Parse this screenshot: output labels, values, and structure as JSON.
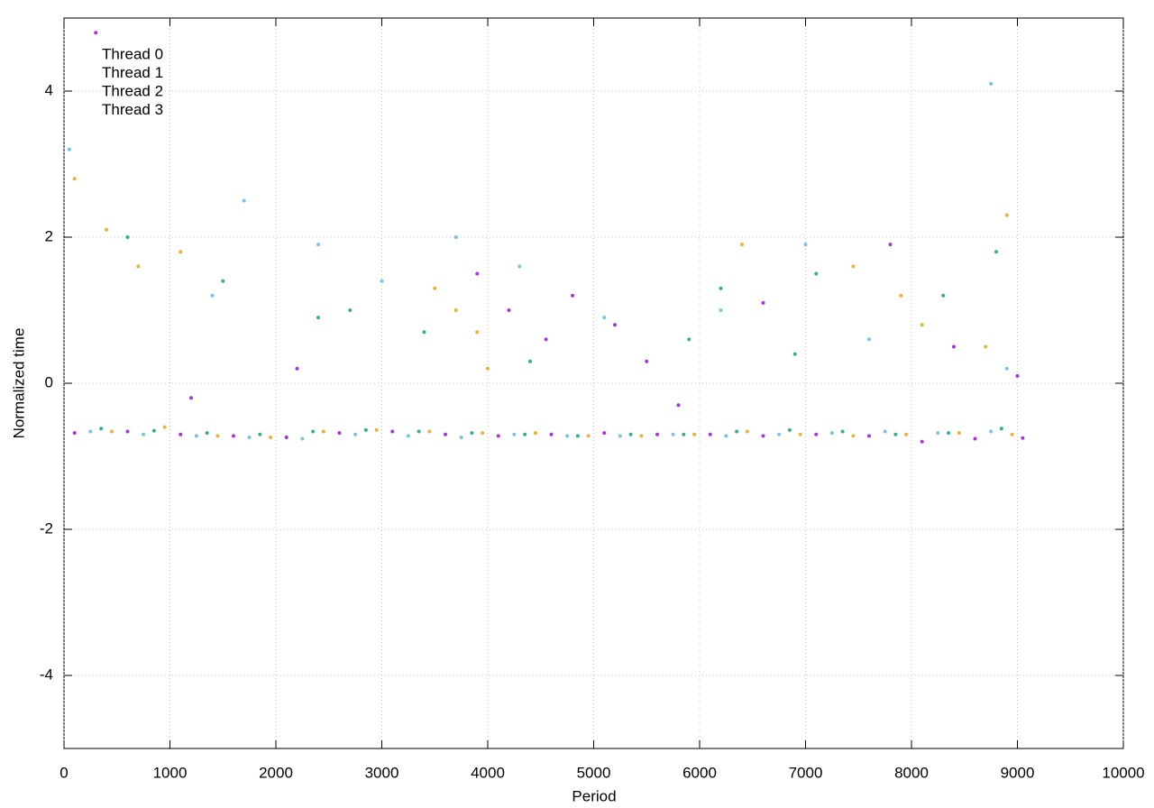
{
  "chart_data": {
    "type": "scatter",
    "x_label": "Period",
    "y_label": "Normalized time",
    "xlim": [
      0,
      10000
    ],
    "ylim": [
      -5,
      5
    ],
    "xticks": [
      0,
      1000,
      2000,
      3000,
      4000,
      5000,
      6000,
      7000,
      8000,
      9000,
      10000
    ],
    "yticks": [
      -4,
      -2,
      0,
      2,
      4
    ],
    "grid": true,
    "legend": "top-left",
    "series": [
      {
        "name": "Thread 0",
        "color": "#9400d3",
        "x": [
          100,
          600,
          1100,
          1600,
          2100,
          2600,
          3100,
          3600,
          4100,
          4600,
          5100,
          5600,
          6100,
          6600,
          7100,
          7600,
          8100,
          8600,
          9050,
          4200,
          4550,
          4800,
          5200,
          5500,
          3900,
          2200,
          6600,
          8400,
          1200,
          7800,
          300,
          9000,
          5800
        ],
        "values": [
          -0.68,
          -0.66,
          -0.7,
          -0.72,
          -0.74,
          -0.68,
          -0.66,
          -0.7,
          -0.72,
          -0.7,
          -0.68,
          -0.7,
          -0.7,
          -0.72,
          -0.7,
          -0.72,
          -0.8,
          -0.76,
          -0.75,
          1.0,
          0.6,
          1.2,
          0.8,
          0.3,
          1.5,
          0.2,
          1.1,
          0.5,
          -0.2,
          1.9,
          4.8,
          0.1,
          -0.3
        ]
      },
      {
        "name": "Thread 1",
        "color": "#009e73",
        "x": [
          350,
          850,
          1350,
          1850,
          2350,
          2850,
          3350,
          3850,
          4350,
          4850,
          5350,
          5850,
          6350,
          6850,
          7350,
          7850,
          8350,
          8850,
          6200,
          7100,
          2700,
          8800,
          1500,
          3400,
          600,
          6900,
          8300,
          2400,
          5900,
          4400
        ],
        "values": [
          -0.62,
          -0.65,
          -0.68,
          -0.7,
          -0.66,
          -0.64,
          -0.66,
          -0.68,
          -0.7,
          -0.72,
          -0.7,
          -0.7,
          -0.66,
          -0.64,
          -0.66,
          -0.7,
          -0.68,
          -0.62,
          1.3,
          1.5,
          1.0,
          1.8,
          1.4,
          0.7,
          2.0,
          0.4,
          1.2,
          0.9,
          0.6,
          0.3
        ]
      },
      {
        "name": "Thread 2",
        "color": "#56b4e9",
        "x": [
          250,
          750,
          1250,
          1750,
          2250,
          2750,
          3250,
          3750,
          4250,
          4750,
          5250,
          5750,
          6250,
          6750,
          7250,
          7750,
          8250,
          8750,
          8750,
          3000,
          2400,
          1400,
          4300,
          7000,
          6200,
          8900,
          50,
          3700,
          1700,
          5100,
          7600
        ],
        "values": [
          -0.66,
          -0.7,
          -0.72,
          -0.74,
          -0.76,
          -0.7,
          -0.72,
          -0.74,
          -0.7,
          -0.72,
          -0.72,
          -0.7,
          -0.72,
          -0.7,
          -0.68,
          -0.66,
          -0.68,
          -0.66,
          4.1,
          1.4,
          1.9,
          1.2,
          1.6,
          1.9,
          1.0,
          0.2,
          3.2,
          2.0,
          2.5,
          0.9,
          0.6
        ]
      },
      {
        "name": "Thread 3",
        "color": "#e69f00",
        "x": [
          450,
          950,
          1450,
          1950,
          2450,
          2950,
          3450,
          3950,
          4450,
          4950,
          5450,
          5950,
          6450,
          6950,
          7450,
          7950,
          8450,
          8950,
          100,
          400,
          700,
          1100,
          3500,
          3700,
          3900,
          6400,
          7450,
          7900,
          8100,
          8700,
          8900,
          4000
        ],
        "values": [
          -0.66,
          -0.6,
          -0.72,
          -0.74,
          -0.66,
          -0.64,
          -0.66,
          -0.68,
          -0.68,
          -0.72,
          -0.72,
          -0.7,
          -0.66,
          -0.7,
          -0.72,
          -0.7,
          -0.68,
          -0.7,
          2.8,
          2.1,
          1.6,
          1.8,
          1.3,
          1.0,
          0.7,
          1.9,
          1.6,
          1.2,
          0.8,
          0.5,
          2.3,
          0.2
        ]
      }
    ]
  }
}
